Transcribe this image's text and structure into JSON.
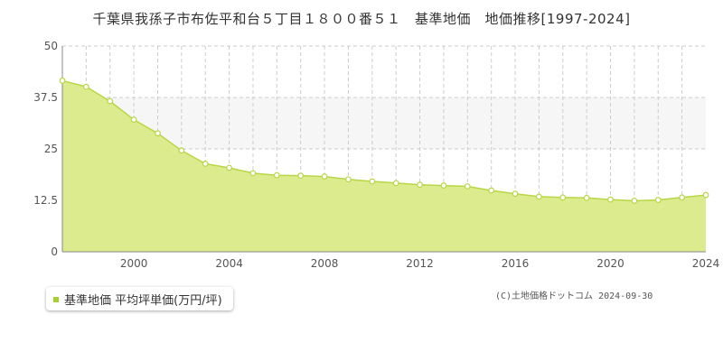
{
  "colors": {
    "fill": "#dbeb8e",
    "line": "#b9d645",
    "marker_fill": "#ffffff",
    "grid": "#cccccc",
    "plot_band": "#f6f6f6",
    "legend_marker": "#a7d02e"
  },
  "chart_data": {
    "type": "area",
    "title": "千葉県我孫子市布佐平和台５丁目１８００番５１　基準地価　地価推移[1997-2024]",
    "series": [
      {
        "name": "基準地価 平均坪単価(万円/坪)",
        "x": [
          1997,
          1998,
          1999,
          2000,
          2001,
          2002,
          2003,
          2004,
          2005,
          2006,
          2007,
          2008,
          2009,
          2010,
          2011,
          2012,
          2013,
          2014,
          2015,
          2016,
          2017,
          2018,
          2019,
          2020,
          2021,
          2022,
          2023,
          2024
        ],
        "values": [
          41.6,
          40.1,
          36.6,
          32.1,
          28.8,
          24.6,
          21.4,
          20.4,
          19.1,
          18.6,
          18.5,
          18.3,
          17.6,
          17.1,
          16.7,
          16.3,
          16.1,
          15.9,
          14.9,
          14.1,
          13.4,
          13.2,
          13.1,
          12.7,
          12.4,
          12.6,
          13.2,
          13.8
        ]
      }
    ],
    "xlim": [
      1997,
      2024
    ],
    "ylim": [
      0,
      50
    ],
    "x_ticks": [
      2000,
      2004,
      2008,
      2012,
      2016,
      2020,
      2024
    ],
    "y_ticks": [
      0,
      12.5,
      25,
      37.5,
      50
    ],
    "y_tick_labels": [
      "0",
      "12.5",
      "25",
      "37.5",
      "50"
    ],
    "grid": true,
    "legend_position": "bottom-left"
  },
  "copyright": "(C)土地価格ドットコム 2024-09-30"
}
